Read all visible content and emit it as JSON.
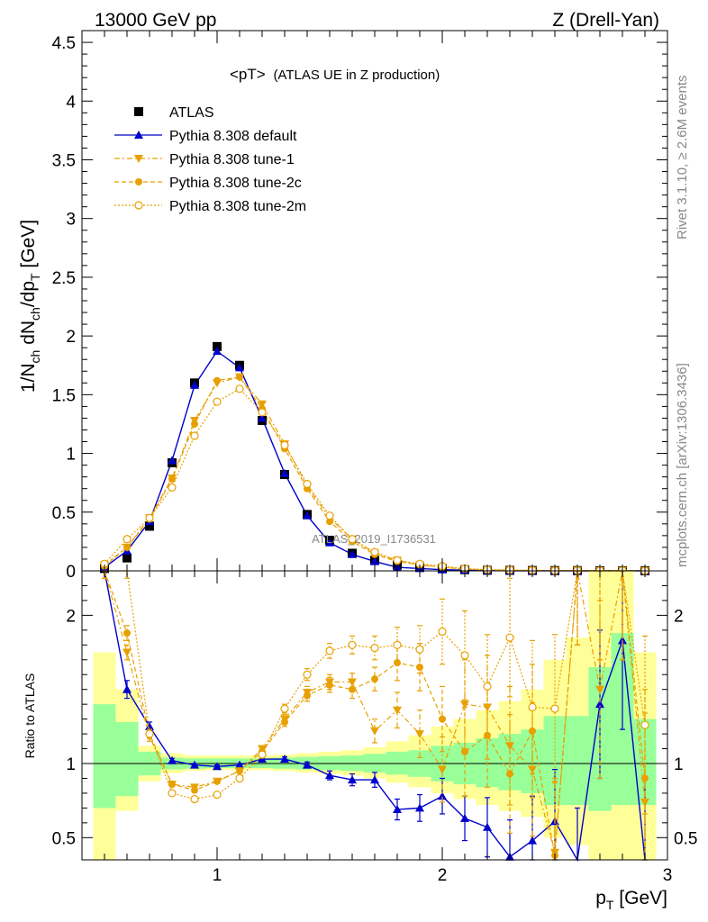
{
  "header": {
    "energy_label": "13000 GeV pp",
    "process_label": "Z (Drell-Yan)"
  },
  "side_labels": {
    "rivet": "Rivet 3.1.10, ≥ 2.6M events",
    "mcplots": "mcplots.cern.ch [arXiv:1306.3436]"
  },
  "watermark": "ATLAS_2019_I1736531",
  "colors": {
    "atlas": "#000000",
    "default": "#0000cc",
    "tunes": "#e8a000",
    "band_green": "#99ff99",
    "band_yellow": "#ffff99"
  },
  "chart_data": [
    {
      "type": "line",
      "title": "<pT> (ATLAS UE in Z production)",
      "title_main": "<pT>",
      "title_sub": "(ATLAS UE in Z production)",
      "ylabel": "1/N_ch dN_ch/dp_T [GeV]",
      "ylabel_parts": {
        "a": "1/N",
        "a_sub": "ch",
        "b": " dN",
        "b_sub": "ch",
        "c": "/dp",
        "c_sub": "T",
        "d": " [GeV]"
      },
      "xlim": [
        0.4,
        3.0
      ],
      "ylim": [
        0,
        4.6
      ],
      "yticks": [
        0,
        0.5,
        1,
        1.5,
        2,
        2.5,
        3,
        3.5,
        4,
        4.5
      ],
      "ytick_labels": [
        "0",
        "0.5",
        "1",
        "1.5",
        "2",
        "2.5",
        "3",
        "3.5",
        "4",
        "4.5"
      ],
      "legend_placement": "top-left",
      "x": [
        0.5,
        0.6,
        0.7,
        0.8,
        0.9,
        1.0,
        1.1,
        1.2,
        1.3,
        1.4,
        1.5,
        1.6,
        1.7,
        1.8,
        1.9,
        2.0,
        2.1,
        2.2,
        2.3,
        2.4,
        2.5,
        2.6,
        2.7,
        2.8,
        2.9
      ],
      "series": [
        {
          "name": "ATLAS",
          "marker": "square",
          "values": [
            0.02,
            0.11,
            0.38,
            0.92,
            1.6,
            1.91,
            1.75,
            1.28,
            0.82,
            0.48,
            0.26,
            0.15,
            0.09,
            0.05,
            0.03,
            0.02,
            0.01,
            0.005,
            0.004,
            0.003,
            0.002,
            0.002,
            0.001,
            0.001,
            0.001
          ]
        },
        {
          "name": "Pythia 8.308 default",
          "marker": "triangle-up",
          "linestyle": "solid",
          "values": [
            0.03,
            0.17,
            0.42,
            0.94,
            1.58,
            1.87,
            1.73,
            1.3,
            0.83,
            0.47,
            0.24,
            0.14,
            0.08,
            0.03,
            0.02,
            0.01,
            0.006,
            0.003,
            0.001,
            0.001,
            0.001,
            0.0,
            0.001,
            0.002,
            0.0
          ]
        },
        {
          "name": "Pythia 8.308 tune-1",
          "marker": "triangle-down",
          "linestyle": "dashdot",
          "values": [
            0.05,
            0.2,
            0.45,
            0.79,
            1.28,
            1.6,
            1.65,
            1.42,
            1.08,
            0.72,
            0.45,
            0.27,
            0.15,
            0.09,
            0.05,
            0.03,
            0.015,
            0.008,
            0.005,
            0.003,
            0.002,
            0.003,
            0.001,
            0.002,
            0.001
          ]
        },
        {
          "name": "Pythia 8.308 tune-2c",
          "marker": "circle",
          "linestyle": "dashed",
          "values": [
            0.04,
            0.2,
            0.44,
            0.78,
            1.25,
            1.62,
            1.65,
            1.38,
            1.04,
            0.7,
            0.42,
            0.25,
            0.14,
            0.08,
            0.05,
            0.03,
            0.015,
            0.01,
            0.005,
            0.003,
            0.002,
            0.002,
            0.001,
            0.002,
            0.001
          ]
        },
        {
          "name": "Pythia 8.308 tune-2m",
          "marker": "circle-open",
          "linestyle": "dotted",
          "values": [
            0.06,
            0.27,
            0.45,
            0.71,
            1.15,
            1.44,
            1.55,
            1.35,
            1.07,
            0.74,
            0.47,
            0.27,
            0.16,
            0.09,
            0.06,
            0.04,
            0.02,
            0.01,
            0.008,
            0.005,
            0.003,
            0.004,
            0.002,
            0.003,
            0.001
          ]
        }
      ]
    },
    {
      "type": "line",
      "title": "",
      "ylabel": "Ratio to ATLAS",
      "xlabel": "p_T [GeV]",
      "xlabel_parts": {
        "a": "p",
        "a_sub": "T",
        "b": " [GeV]"
      },
      "xlim": [
        0.4,
        3.0
      ],
      "ylim": [
        0.35,
        2.3
      ],
      "xticks": [
        1,
        2,
        3
      ],
      "xtick_labels": [
        "1",
        "2",
        "3"
      ],
      "yticks": [
        0.5,
        1,
        2
      ],
      "ytick_labels": [
        "0.5",
        "1",
        "2"
      ],
      "reference_line": 1,
      "x": [
        0.5,
        0.6,
        0.7,
        0.8,
        0.9,
        1.0,
        1.1,
        1.2,
        1.3,
        1.4,
        1.5,
        1.6,
        1.7,
        1.8,
        1.9,
        2.0,
        2.1,
        2.2,
        2.3,
        2.4,
        2.5,
        2.6,
        2.7,
        2.8,
        2.9
      ],
      "bands": {
        "green_lo": [
          0.7,
          0.78,
          0.92,
          0.96,
          0.965,
          0.97,
          0.97,
          0.97,
          0.965,
          0.96,
          0.955,
          0.95,
          0.94,
          0.925,
          0.91,
          0.88,
          0.86,
          0.84,
          0.82,
          0.8,
          0.72,
          0.72,
          0.68,
          0.72,
          0.72
        ],
        "green_hi": [
          1.4,
          1.28,
          1.08,
          1.04,
          1.035,
          1.035,
          1.035,
          1.035,
          1.04,
          1.045,
          1.05,
          1.055,
          1.065,
          1.08,
          1.09,
          1.12,
          1.14,
          1.17,
          1.2,
          1.23,
          1.32,
          1.32,
          1.65,
          1.88,
          1.3
        ],
        "yellow_lo": [
          0.35,
          0.68,
          0.88,
          0.935,
          0.95,
          0.955,
          0.955,
          0.955,
          0.95,
          0.94,
          0.93,
          0.92,
          0.9,
          0.87,
          0.84,
          0.8,
          0.76,
          0.72,
          0.68,
          0.64,
          0.5,
          0.45,
          0.35,
          0.35,
          0.35
        ],
        "yellow_hi": [
          1.75,
          1.5,
          1.12,
          1.07,
          1.055,
          1.055,
          1.055,
          1.055,
          1.06,
          1.07,
          1.08,
          1.09,
          1.11,
          1.15,
          1.19,
          1.25,
          1.3,
          1.36,
          1.42,
          1.5,
          1.7,
          1.85,
          2.3,
          2.3,
          1.75
        ]
      },
      "series": [
        {
          "name": "Pythia 8.308 default",
          "marker": "triangle-up",
          "values": [
            2.3,
            1.5,
            1.25,
            1.02,
            0.99,
            0.98,
            0.99,
            1.03,
            1.03,
            0.99,
            0.92,
            0.89,
            0.89,
            0.69,
            0.7,
            0.78,
            0.63,
            0.57,
            0.37,
            0.48,
            0.61,
            0.3,
            1.4,
            1.83,
            0.3
          ],
          "errors": [
            0.05,
            0.06,
            0.03,
            0.015,
            0.01,
            0.01,
            0.01,
            0.015,
            0.015,
            0.02,
            0.03,
            0.04,
            0.05,
            0.07,
            0.09,
            0.12,
            0.15,
            0.2,
            0.25,
            0.3,
            0.35,
            0.4,
            0.5,
            0.6,
            0.6
          ]
        },
        {
          "name": "Pythia 8.308 tune-1",
          "marker": "triangle-down",
          "values": [
            2.3,
            1.75,
            1.18,
            0.86,
            0.84,
            0.88,
            0.95,
            1.1,
            1.3,
            1.48,
            1.55,
            1.55,
            1.22,
            1.36,
            1.2,
            0.96,
            1.4,
            1.38,
            1.12,
            0.96,
            0.4,
            2.3,
            1.5,
            2.3,
            0.74
          ],
          "errors": [
            0.05,
            0.05,
            0.03,
            0.015,
            0.015,
            0.015,
            0.015,
            0.02,
            0.03,
            0.04,
            0.05,
            0.06,
            0.08,
            0.12,
            0.16,
            0.22,
            0.3,
            0.35,
            0.4,
            0.45,
            0.5,
            0.5,
            0.6,
            0.6,
            0.6
          ]
        },
        {
          "name": "Pythia 8.308 tune-2c",
          "marker": "circle",
          "values": [
            2.3,
            1.88,
            1.2,
            0.86,
            0.82,
            0.88,
            0.95,
            1.08,
            1.28,
            1.46,
            1.53,
            1.5,
            1.57,
            1.68,
            1.65,
            1.3,
            1.08,
            1.19,
            0.93,
            1.22,
            0.38,
            2.3,
            2.3,
            2.3,
            0.9
          ],
          "errors": [
            0.05,
            0.05,
            0.03,
            0.015,
            0.015,
            0.015,
            0.015,
            0.02,
            0.03,
            0.04,
            0.05,
            0.06,
            0.08,
            0.12,
            0.16,
            0.22,
            0.3,
            0.35,
            0.4,
            0.45,
            0.5,
            0.5,
            0.6,
            0.6,
            0.6
          ]
        },
        {
          "name": "Pythia 8.308 tune-2m",
          "marker": "circle-open",
          "values": [
            2.3,
            2.3,
            1.2,
            0.8,
            0.76,
            0.79,
            0.9,
            1.06,
            1.37,
            1.6,
            1.76,
            1.8,
            1.78,
            1.8,
            1.77,
            1.89,
            1.73,
            1.52,
            1.85,
            1.38,
            1.37,
            2.3,
            2.3,
            2.3,
            1.26
          ],
          "errors": [
            0.05,
            0.05,
            0.03,
            0.015,
            0.015,
            0.015,
            0.015,
            0.02,
            0.03,
            0.04,
            0.05,
            0.06,
            0.08,
            0.12,
            0.16,
            0.22,
            0.3,
            0.35,
            0.4,
            0.45,
            0.5,
            0.5,
            0.6,
            0.6,
            0.6
          ]
        }
      ]
    }
  ]
}
